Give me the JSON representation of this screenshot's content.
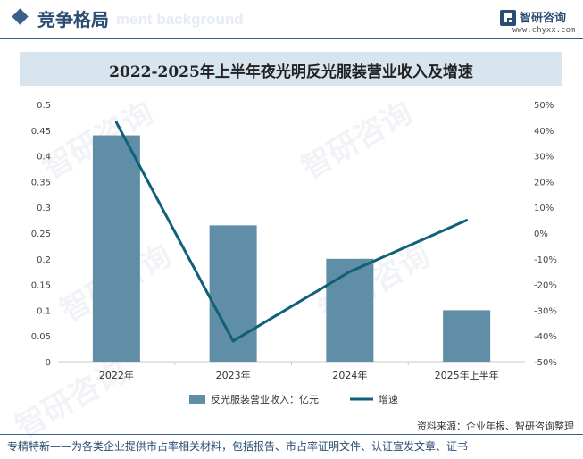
{
  "header": {
    "title": "竞争格局",
    "watermark": "ment background",
    "logo_name": "智研咨询",
    "logo_url": "www.chyxx.com"
  },
  "watermark_text": "智研咨询",
  "chart_data": {
    "type": "bar",
    "title": "2022-2025年上半年夜光明反光服装营业收入及增速",
    "categories": [
      "2022年",
      "2023年",
      "2024年",
      "2025年上半年"
    ],
    "series": [
      {
        "name": "反光服装营业收入：亿元",
        "type": "bar",
        "axis": "left",
        "color": "#5f8ea6",
        "values": [
          0.44,
          0.265,
          0.2,
          0.1
        ]
      },
      {
        "name": "增速",
        "type": "line",
        "axis": "right",
        "color": "#0f6078",
        "values": [
          43,
          -42,
          -15,
          5
        ]
      }
    ],
    "y_left": {
      "min": 0,
      "max": 0.5,
      "ticks": [
        "0",
        "0.05",
        "0.1",
        "0.15",
        "0.2",
        "0.25",
        "0.3",
        "0.35",
        "0.4",
        "0.45",
        "0.5"
      ]
    },
    "y_right": {
      "min": -50,
      "max": 50,
      "ticks": [
        "-50%",
        "-40%",
        "-30%",
        "-20%",
        "-10%",
        "0%",
        "10%",
        "20%",
        "30%",
        "40%",
        "50%"
      ]
    },
    "legend_position": "bottom",
    "grid": false
  },
  "footer": {
    "source": "资料来源：企业年报、智研咨询整理",
    "text": "专精特新——为各类企业提供市占率相关材料，包括报告、市占率证明文件、认证宣发文章、证书"
  }
}
